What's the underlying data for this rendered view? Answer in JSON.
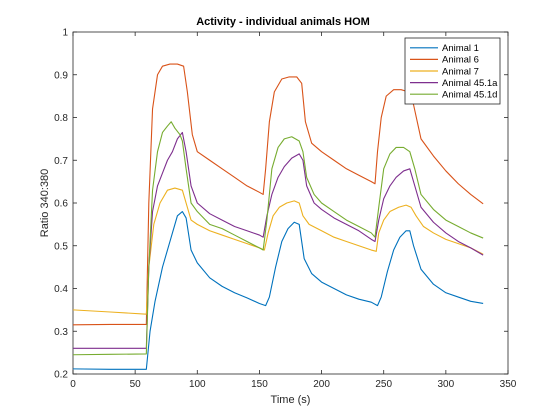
{
  "chart_data": {
    "type": "line",
    "title": "Activity - individual animals HOM",
    "xlabel": "Time (s)",
    "ylabel": "Ratio 340:380",
    "xlim": [
      0,
      350
    ],
    "ylim": [
      0.2,
      1.0
    ],
    "xticks": [
      0,
      50,
      100,
      150,
      200,
      250,
      300,
      350
    ],
    "yticks": [
      0.2,
      0.3,
      0.4,
      0.5,
      0.6,
      0.7,
      0.8,
      0.9,
      1.0
    ],
    "xtick_labels": [
      "0",
      "50",
      "100",
      "150",
      "200",
      "250",
      "300",
      "350"
    ],
    "ytick_labels": [
      "0.2",
      "0.3",
      "0.4",
      "0.5",
      "0.6",
      "0.7",
      "0.8",
      "0.9",
      "1"
    ],
    "grid": false,
    "legend_position": "top-right",
    "series": [
      {
        "name": "Animal 1",
        "color": "#0072BD",
        "points": [
          [
            0,
            0.212
          ],
          [
            30,
            0.211
          ],
          [
            59,
            0.211
          ],
          [
            62,
            0.3
          ],
          [
            66,
            0.37
          ],
          [
            72,
            0.45
          ],
          [
            78,
            0.51
          ],
          [
            84,
            0.57
          ],
          [
            88,
            0.58
          ],
          [
            91,
            0.565
          ],
          [
            95,
            0.49
          ],
          [
            100,
            0.46
          ],
          [
            110,
            0.425
          ],
          [
            120,
            0.405
          ],
          [
            130,
            0.39
          ],
          [
            140,
            0.378
          ],
          [
            150,
            0.365
          ],
          [
            155,
            0.36
          ],
          [
            158,
            0.38
          ],
          [
            163,
            0.45
          ],
          [
            168,
            0.51
          ],
          [
            173,
            0.54
          ],
          [
            178,
            0.555
          ],
          [
            182,
            0.55
          ],
          [
            186,
            0.47
          ],
          [
            192,
            0.435
          ],
          [
            200,
            0.415
          ],
          [
            210,
            0.4
          ],
          [
            220,
            0.385
          ],
          [
            230,
            0.375
          ],
          [
            240,
            0.368
          ],
          [
            245,
            0.36
          ],
          [
            248,
            0.38
          ],
          [
            253,
            0.44
          ],
          [
            258,
            0.49
          ],
          [
            263,
            0.52
          ],
          [
            268,
            0.535
          ],
          [
            271,
            0.535
          ],
          [
            274,
            0.5
          ],
          [
            280,
            0.445
          ],
          [
            290,
            0.41
          ],
          [
            300,
            0.39
          ],
          [
            310,
            0.38
          ],
          [
            320,
            0.37
          ],
          [
            330,
            0.365
          ]
        ]
      },
      {
        "name": "Animal 6",
        "color": "#D95319",
        "points": [
          [
            0,
            0.315
          ],
          [
            30,
            0.316
          ],
          [
            59,
            0.316
          ],
          [
            61,
            0.6
          ],
          [
            64,
            0.82
          ],
          [
            68,
            0.9
          ],
          [
            72,
            0.92
          ],
          [
            78,
            0.925
          ],
          [
            84,
            0.925
          ],
          [
            89,
            0.92
          ],
          [
            92,
            0.86
          ],
          [
            96,
            0.76
          ],
          [
            100,
            0.72
          ],
          [
            110,
            0.7
          ],
          [
            120,
            0.68
          ],
          [
            130,
            0.66
          ],
          [
            140,
            0.64
          ],
          [
            150,
            0.625
          ],
          [
            153,
            0.62
          ],
          [
            155,
            0.68
          ],
          [
            158,
            0.79
          ],
          [
            162,
            0.86
          ],
          [
            168,
            0.89
          ],
          [
            174,
            0.895
          ],
          [
            180,
            0.895
          ],
          [
            184,
            0.88
          ],
          [
            187,
            0.79
          ],
          [
            192,
            0.74
          ],
          [
            200,
            0.72
          ],
          [
            210,
            0.7
          ],
          [
            220,
            0.68
          ],
          [
            230,
            0.665
          ],
          [
            240,
            0.65
          ],
          [
            243,
            0.645
          ],
          [
            245,
            0.72
          ],
          [
            248,
            0.8
          ],
          [
            252,
            0.85
          ],
          [
            258,
            0.865
          ],
          [
            264,
            0.865
          ],
          [
            270,
            0.86
          ],
          [
            274,
            0.83
          ],
          [
            280,
            0.75
          ],
          [
            290,
            0.71
          ],
          [
            300,
            0.675
          ],
          [
            310,
            0.645
          ],
          [
            320,
            0.62
          ],
          [
            330,
            0.598
          ]
        ]
      },
      {
        "name": "Animal 7",
        "color": "#EDB120",
        "points": [
          [
            0,
            0.35
          ],
          [
            30,
            0.345
          ],
          [
            59,
            0.34
          ],
          [
            61,
            0.45
          ],
          [
            65,
            0.55
          ],
          [
            70,
            0.6
          ],
          [
            76,
            0.63
          ],
          [
            82,
            0.635
          ],
          [
            88,
            0.63
          ],
          [
            91,
            0.6
          ],
          [
            95,
            0.56
          ],
          [
            100,
            0.55
          ],
          [
            110,
            0.535
          ],
          [
            120,
            0.525
          ],
          [
            130,
            0.515
          ],
          [
            140,
            0.505
          ],
          [
            150,
            0.495
          ],
          [
            154,
            0.49
          ],
          [
            157,
            0.53
          ],
          [
            161,
            0.57
          ],
          [
            166,
            0.59
          ],
          [
            172,
            0.6
          ],
          [
            178,
            0.605
          ],
          [
            182,
            0.6
          ],
          [
            185,
            0.57
          ],
          [
            190,
            0.55
          ],
          [
            200,
            0.535
          ],
          [
            210,
            0.52
          ],
          [
            220,
            0.51
          ],
          [
            230,
            0.5
          ],
          [
            240,
            0.49
          ],
          [
            244,
            0.487
          ],
          [
            246,
            0.53
          ],
          [
            250,
            0.56
          ],
          [
            255,
            0.58
          ],
          [
            262,
            0.59
          ],
          [
            268,
            0.595
          ],
          [
            272,
            0.59
          ],
          [
            276,
            0.57
          ],
          [
            282,
            0.545
          ],
          [
            290,
            0.53
          ],
          [
            300,
            0.515
          ],
          [
            310,
            0.505
          ],
          [
            320,
            0.495
          ],
          [
            330,
            0.48
          ]
        ]
      },
      {
        "name": "Animal 45.1a",
        "color": "#7E2F8E",
        "points": [
          [
            0,
            0.26
          ],
          [
            30,
            0.26
          ],
          [
            59,
            0.26
          ],
          [
            61,
            0.45
          ],
          [
            64,
            0.58
          ],
          [
            68,
            0.64
          ],
          [
            72,
            0.67
          ],
          [
            76,
            0.7
          ],
          [
            80,
            0.72
          ],
          [
            84,
            0.75
          ],
          [
            88,
            0.765
          ],
          [
            91,
            0.72
          ],
          [
            95,
            0.64
          ],
          [
            100,
            0.6
          ],
          [
            110,
            0.575
          ],
          [
            120,
            0.56
          ],
          [
            130,
            0.545
          ],
          [
            140,
            0.535
          ],
          [
            150,
            0.525
          ],
          [
            153,
            0.52
          ],
          [
            156,
            0.57
          ],
          [
            160,
            0.62
          ],
          [
            165,
            0.66
          ],
          [
            170,
            0.685
          ],
          [
            176,
            0.705
          ],
          [
            182,
            0.715
          ],
          [
            185,
            0.7
          ],
          [
            188,
            0.64
          ],
          [
            194,
            0.6
          ],
          [
            200,
            0.585
          ],
          [
            210,
            0.565
          ],
          [
            220,
            0.55
          ],
          [
            230,
            0.535
          ],
          [
            240,
            0.515
          ],
          [
            243,
            0.51
          ],
          [
            246,
            0.56
          ],
          [
            250,
            0.61
          ],
          [
            255,
            0.64
          ],
          [
            260,
            0.66
          ],
          [
            266,
            0.675
          ],
          [
            271,
            0.68
          ],
          [
            275,
            0.64
          ],
          [
            280,
            0.59
          ],
          [
            290,
            0.555
          ],
          [
            300,
            0.53
          ],
          [
            310,
            0.51
          ],
          [
            320,
            0.495
          ],
          [
            330,
            0.478
          ]
        ]
      },
      {
        "name": "Animal 45.1d",
        "color": "#77AC30",
        "points": [
          [
            0,
            0.245
          ],
          [
            30,
            0.246
          ],
          [
            59,
            0.247
          ],
          [
            61,
            0.45
          ],
          [
            64,
            0.63
          ],
          [
            68,
            0.72
          ],
          [
            72,
            0.765
          ],
          [
            76,
            0.78
          ],
          [
            79,
            0.79
          ],
          [
            82,
            0.775
          ],
          [
            86,
            0.76
          ],
          [
            88,
            0.745
          ],
          [
            91,
            0.68
          ],
          [
            95,
            0.6
          ],
          [
            100,
            0.58
          ],
          [
            110,
            0.55
          ],
          [
            120,
            0.54
          ],
          [
            130,
            0.525
          ],
          [
            140,
            0.51
          ],
          [
            150,
            0.495
          ],
          [
            153,
            0.49
          ],
          [
            156,
            0.56
          ],
          [
            160,
            0.68
          ],
          [
            165,
            0.73
          ],
          [
            170,
            0.75
          ],
          [
            176,
            0.755
          ],
          [
            182,
            0.745
          ],
          [
            185,
            0.72
          ],
          [
            188,
            0.66
          ],
          [
            194,
            0.62
          ],
          [
            200,
            0.6
          ],
          [
            210,
            0.58
          ],
          [
            220,
            0.56
          ],
          [
            230,
            0.545
          ],
          [
            240,
            0.53
          ],
          [
            243,
            0.52
          ],
          [
            246,
            0.59
          ],
          [
            250,
            0.68
          ],
          [
            255,
            0.715
          ],
          [
            260,
            0.73
          ],
          [
            266,
            0.73
          ],
          [
            271,
            0.72
          ],
          [
            275,
            0.68
          ],
          [
            280,
            0.62
          ],
          [
            290,
            0.585
          ],
          [
            300,
            0.56
          ],
          [
            310,
            0.545
          ],
          [
            320,
            0.53
          ],
          [
            330,
            0.518
          ]
        ]
      }
    ]
  }
}
